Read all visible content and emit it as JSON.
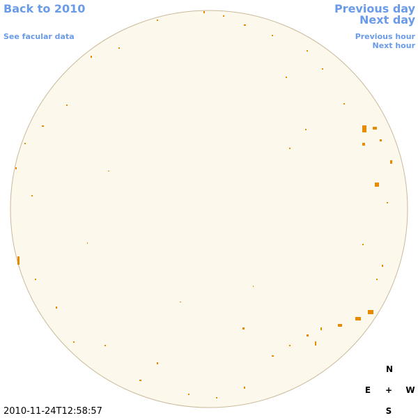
{
  "header": {
    "back_link": "Back to 2010",
    "facular_link": "See facular data"
  },
  "navigation": {
    "previous_day": "Previous day",
    "next_day": "Next day",
    "previous_hour": "Previous hour",
    "next_hour": "Next hour"
  },
  "compass": {
    "north": "N",
    "east": "E",
    "center": "+",
    "west": "W",
    "south": "S"
  },
  "timestamp": "2010-11-24T12:58:57"
}
